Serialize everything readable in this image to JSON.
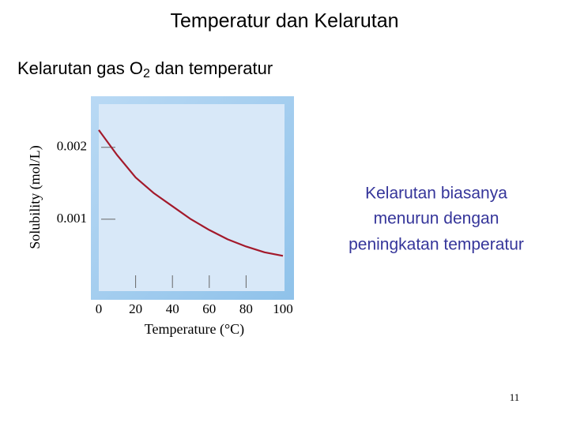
{
  "slide": {
    "title": "Temperatur dan Kelarutan",
    "subtitle": [
      "Kelarutan gas O",
      "2",
      " dan temperatur"
    ],
    "note": [
      "Kelarutan biasanya",
      "menurun dengan",
      "peningkatan temperatur"
    ],
    "page_number": "11"
  },
  "chart_data": {
    "type": "line",
    "x_label": "Temperature (°C)",
    "y_label": "Solubility (mol/L)",
    "x": [
      0,
      10,
      20,
      30,
      40,
      50,
      60,
      70,
      80,
      90,
      100
    ],
    "series": [
      {
        "name": "O2",
        "color": "#a3192b",
        "values": [
          0.00224,
          0.00189,
          0.00158,
          0.00136,
          0.00118,
          0.001,
          0.00085,
          0.00072,
          0.00062,
          0.00054,
          0.00049
        ]
      }
    ],
    "xlim": [
      0,
      100
    ],
    "xticks": [
      0,
      20,
      40,
      60,
      80,
      100
    ],
    "ylim": [
      0,
      0.0026
    ],
    "yticks": [
      0.001,
      0.002
    ]
  }
}
